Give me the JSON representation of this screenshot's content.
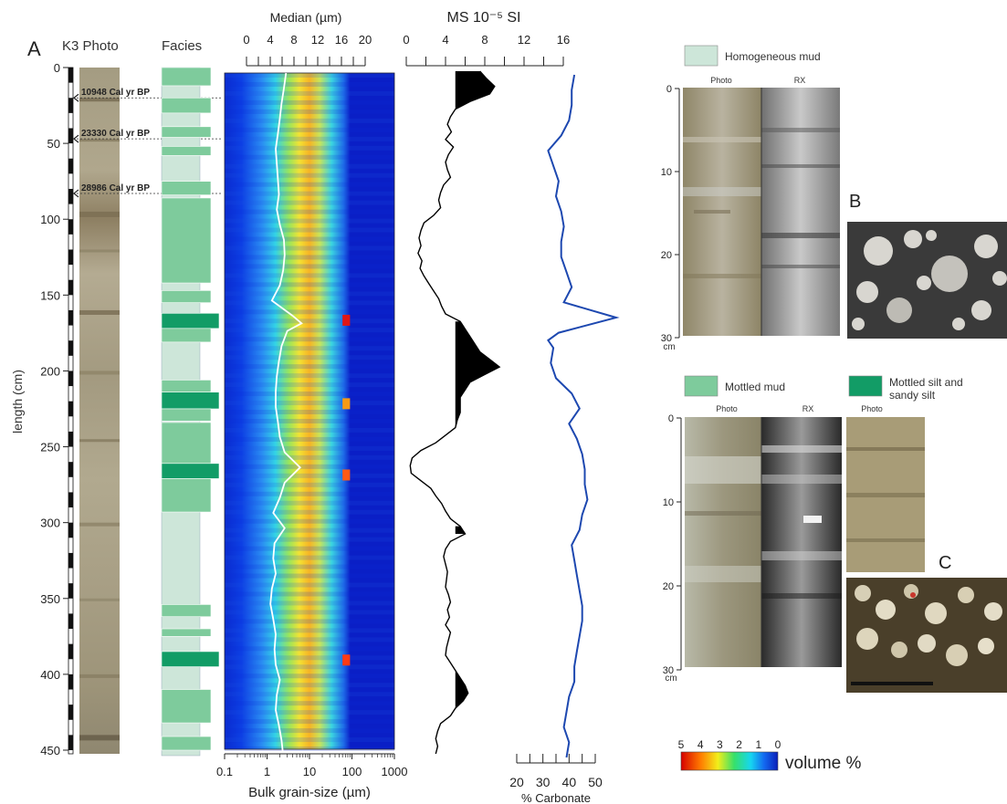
{
  "panel_a": {
    "letter": "A",
    "photo_label": "K3 Photo",
    "facies_label": "Facies",
    "ylabel": "length (cm)",
    "depth_ticks": [
      "0",
      "50",
      "100",
      "150",
      "200",
      "250",
      "300",
      "350",
      "400",
      "450"
    ],
    "ages": [
      {
        "depth_cm": 20,
        "label": "10948 Cal yr BP"
      },
      {
        "depth_cm": 47,
        "label": "23330 Cal yr BP"
      },
      {
        "depth_cm": 83,
        "label": "28986 Cal yr BP"
      }
    ],
    "facies": [
      {
        "top": 0,
        "bottom": 12,
        "type": "mottled"
      },
      {
        "top": 12,
        "bottom": 20,
        "type": "homogeneous"
      },
      {
        "top": 20,
        "bottom": 30,
        "type": "mottled"
      },
      {
        "top": 30,
        "bottom": 39,
        "type": "homogeneous"
      },
      {
        "top": 39,
        "bottom": 46,
        "type": "mottled"
      },
      {
        "top": 46,
        "bottom": 52,
        "type": "homogeneous"
      },
      {
        "top": 52,
        "bottom": 58,
        "type": "mottled"
      },
      {
        "top": 58,
        "bottom": 75,
        "type": "homogeneous"
      },
      {
        "top": 75,
        "bottom": 84,
        "type": "mottled"
      },
      {
        "top": 84,
        "bottom": 86,
        "type": "homogeneous"
      },
      {
        "top": 86,
        "bottom": 142,
        "type": "mottled"
      },
      {
        "top": 142,
        "bottom": 147,
        "type": "homogeneous"
      },
      {
        "top": 147,
        "bottom": 155,
        "type": "mottled"
      },
      {
        "top": 155,
        "bottom": 162,
        "type": "homogeneous"
      },
      {
        "top": 162,
        "bottom": 172,
        "type": "silt"
      },
      {
        "top": 172,
        "bottom": 181,
        "type": "mottled"
      },
      {
        "top": 181,
        "bottom": 206,
        "type": "homogeneous"
      },
      {
        "top": 206,
        "bottom": 214,
        "type": "mottled"
      },
      {
        "top": 214,
        "bottom": 225,
        "type": "silt"
      },
      {
        "top": 225,
        "bottom": 233,
        "type": "mottled"
      },
      {
        "top": 233,
        "bottom": 234,
        "type": "homogeneous"
      },
      {
        "top": 234,
        "bottom": 261,
        "type": "mottled"
      },
      {
        "top": 261,
        "bottom": 271,
        "type": "silt"
      },
      {
        "top": 271,
        "bottom": 293,
        "type": "mottled"
      },
      {
        "top": 293,
        "bottom": 354,
        "type": "homogeneous"
      },
      {
        "top": 354,
        "bottom": 362,
        "type": "mottled"
      },
      {
        "top": 362,
        "bottom": 370,
        "type": "homogeneous"
      },
      {
        "top": 370,
        "bottom": 375,
        "type": "mottled"
      },
      {
        "top": 375,
        "bottom": 385,
        "type": "homogeneous"
      },
      {
        "top": 385,
        "bottom": 395,
        "type": "silt"
      },
      {
        "top": 395,
        "bottom": 410,
        "type": "homogeneous"
      },
      {
        "top": 410,
        "bottom": 432,
        "type": "mottled"
      },
      {
        "top": 432,
        "bottom": 441,
        "type": "homogeneous"
      },
      {
        "top": 441,
        "bottom": 450,
        "type": "mottled"
      }
    ]
  },
  "legend": {
    "homogeneous": "Homogeneous mud",
    "mottled": "Mottled mud",
    "silt_line1": "Mottled silt and",
    "silt_line2": "sandy silt",
    "colorbar_ticks": [
      "5",
      "4",
      "3",
      "2",
      "1",
      "0"
    ],
    "colorbar_label": "volume %"
  },
  "panel_b": {
    "letter": "B",
    "photo_label": "Photo",
    "rx_label": "RX",
    "ticks": [
      "0",
      "10",
      "20",
      "30"
    ],
    "unit": "cm"
  },
  "panel_c": {
    "letter": "C",
    "photo_label": "Photo",
    "rx_label": "RX",
    "photo2_label": "Photo",
    "ticks": [
      "0",
      "10",
      "20",
      "30"
    ],
    "unit": "cm"
  },
  "chart_data": [
    {
      "type": "heatmap",
      "xlabel": "Bulk grain-size (µm)",
      "x_ticks": [
        "0.1",
        "1",
        "10",
        "100",
        "1000"
      ],
      "xscale": "log",
      "xlim": [
        0.1,
        1000
      ],
      "y": "length (cm)",
      "ylim": [
        0,
        450
      ],
      "top_axis_title": "Median (µm)",
      "top_axis_ticks": [
        "0",
        "4",
        "8",
        "12",
        "16",
        "20"
      ],
      "top_axis_lim": [
        0,
        20
      ],
      "median_depth": [
        0,
        10,
        20,
        30,
        40,
        50,
        60,
        70,
        80,
        90,
        100,
        110,
        120,
        130,
        140,
        150,
        160,
        165,
        170,
        180,
        190,
        200,
        210,
        220,
        230,
        240,
        250,
        260,
        270,
        280,
        290,
        300,
        310,
        320,
        330,
        340,
        350,
        360,
        370,
        380,
        390,
        400,
        410,
        420,
        430,
        440,
        450
      ],
      "median_um": [
        2.8,
        2.5,
        2.2,
        2.0,
        1.8,
        1.6,
        1.7,
        1.8,
        1.9,
        1.7,
        2.0,
        2.5,
        2.6,
        2.4,
        2.0,
        1.3,
        4.0,
        6.5,
        3.0,
        2.2,
        1.9,
        1.7,
        1.6,
        1.6,
        1.8,
        2.0,
        2.6,
        6.0,
        2.6,
        2.0,
        1.4,
        2.6,
        1.5,
        1.4,
        1.6,
        1.3,
        1.2,
        1.4,
        1.6,
        1.5,
        1.6,
        2.0,
        1.7,
        1.6,
        1.9,
        2.2,
        2.4
      ]
    },
    {
      "type": "line",
      "title": "MS 10⁻⁵ SI",
      "x_ticks": [
        "0",
        "4",
        "8",
        "12",
        "16"
      ],
      "xlim": [
        0,
        16
      ],
      "ylim": [
        0,
        450
      ],
      "depth": [
        0,
        5,
        10,
        15,
        20,
        25,
        30,
        35,
        40,
        45,
        50,
        55,
        60,
        65,
        70,
        75,
        80,
        85,
        90,
        95,
        100,
        105,
        110,
        115,
        120,
        125,
        130,
        135,
        140,
        145,
        150,
        155,
        160,
        165,
        170,
        175,
        180,
        185,
        190,
        195,
        200,
        205,
        210,
        215,
        220,
        225,
        230,
        235,
        240,
        245,
        250,
        255,
        260,
        265,
        270,
        275,
        280,
        285,
        290,
        295,
        300,
        305,
        310,
        315,
        320,
        325,
        330,
        335,
        340,
        345,
        350,
        355,
        360,
        365,
        370,
        375,
        380,
        385,
        390,
        395,
        400,
        405,
        410,
        415,
        420,
        425,
        430,
        435,
        440,
        445,
        450
      ],
      "values": [
        7.5,
        8.2,
        9.0,
        8.5,
        6.5,
        5.0,
        4.5,
        4.2,
        4.6,
        4.0,
        4.8,
        4.3,
        4.0,
        4.2,
        4.5,
        3.8,
        3.5,
        3.3,
        3.5,
        2.8,
        1.8,
        1.5,
        1.3,
        1.5,
        1.2,
        1.6,
        1.4,
        1.8,
        2.3,
        2.8,
        3.3,
        3.6,
        4.0,
        5.5,
        6.0,
        6.5,
        7.0,
        7.5,
        8.5,
        9.5,
        8.0,
        6.5,
        6.0,
        5.5,
        5.5,
        5.5,
        5.2,
        5.0,
        4.0,
        3.0,
        1.5,
        0.6,
        0.4,
        0.5,
        1.5,
        2.5,
        3.0,
        3.6,
        4.0,
        4.5,
        5.5,
        6.0,
        4.5,
        4.0,
        3.8,
        4.0,
        4.2,
        4.1,
        4.0,
        4.3,
        4.5,
        4.2,
        4.4,
        4.0,
        4.5,
        4.3,
        4.1,
        4.0,
        4.5,
        5.0,
        5.5,
        6.0,
        6.3,
        5.8,
        5.0,
        4.5,
        3.5,
        3.2,
        3.0,
        3.2,
        3.0
      ],
      "fill_from": 5
    },
    {
      "type": "line",
      "xlabel": "% Carbonate",
      "x_ticks": [
        "20",
        "30",
        "40",
        "50"
      ],
      "xlim": [
        20,
        50
      ],
      "ylim": [
        0,
        450
      ],
      "depth": [
        0,
        10,
        20,
        30,
        40,
        50,
        60,
        70,
        80,
        90,
        100,
        110,
        120,
        130,
        140,
        150,
        160,
        170,
        175,
        180,
        190,
        200,
        210,
        220,
        230,
        240,
        250,
        260,
        270,
        280,
        290,
        300,
        310,
        320,
        330,
        340,
        350,
        360,
        370,
        380,
        390,
        400,
        410,
        420,
        430,
        440,
        450
      ],
      "values": [
        42,
        41,
        41,
        40,
        37,
        32,
        34,
        36,
        35,
        37,
        38,
        37,
        37,
        39,
        41,
        38,
        58,
        36,
        32,
        34,
        33,
        35,
        41,
        44,
        40,
        43,
        45,
        46,
        46,
        47,
        45,
        44,
        41,
        42,
        43,
        44,
        45,
        45,
        44,
        43,
        42,
        42,
        40,
        39,
        38,
        40,
        39
      ]
    }
  ]
}
